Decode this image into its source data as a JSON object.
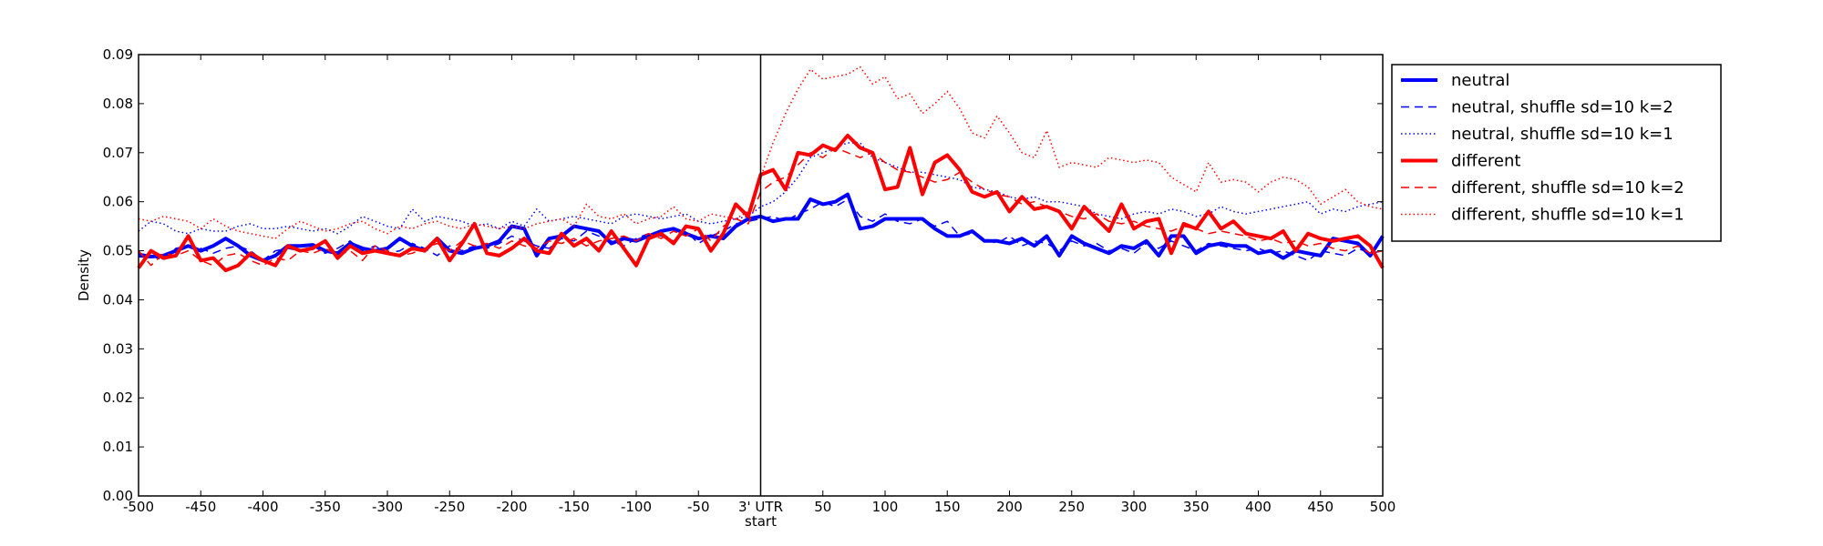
{
  "chart_data": {
    "type": "line",
    "ylabel": "Density",
    "xlim": [
      -500,
      500
    ],
    "ylim": [
      0,
      0.09
    ],
    "grid": false,
    "legend_position": "outside-right",
    "x_ticks": [
      {
        "value": -500,
        "label": "-500"
      },
      {
        "value": -450,
        "label": "-450"
      },
      {
        "value": -400,
        "label": "-400"
      },
      {
        "value": -350,
        "label": "-350"
      },
      {
        "value": -300,
        "label": "-300"
      },
      {
        "value": -250,
        "label": "-250"
      },
      {
        "value": -200,
        "label": "-200"
      },
      {
        "value": -150,
        "label": "-150"
      },
      {
        "value": -100,
        "label": "-100"
      },
      {
        "value": -50,
        "label": "-50"
      },
      {
        "value": 0,
        "label": "3' UTR\nstart"
      },
      {
        "value": 50,
        "label": "50"
      },
      {
        "value": 100,
        "label": "100"
      },
      {
        "value": 150,
        "label": "150"
      },
      {
        "value": 200,
        "label": "200"
      },
      {
        "value": 250,
        "label": "250"
      },
      {
        "value": 300,
        "label": "300"
      },
      {
        "value": 350,
        "label": "350"
      },
      {
        "value": 400,
        "label": "400"
      },
      {
        "value": 450,
        "label": "450"
      },
      {
        "value": 500,
        "label": "500"
      }
    ],
    "y_ticks": [
      {
        "value": 0,
        "label": "0.00"
      },
      {
        "value": 0.01,
        "label": "0.01"
      },
      {
        "value": 0.02,
        "label": "0.02"
      },
      {
        "value": 0.03,
        "label": "0.03"
      },
      {
        "value": 0.04,
        "label": "0.04"
      },
      {
        "value": 0.05,
        "label": "0.05"
      },
      {
        "value": 0.06,
        "label": "0.06"
      },
      {
        "value": 0.07,
        "label": "0.07"
      },
      {
        "value": 0.08,
        "label": "0.08"
      },
      {
        "value": 0.09,
        "label": "0.09"
      }
    ],
    "vertical_line_x": 0,
    "x": [
      -500,
      -490,
      -480,
      -470,
      -460,
      -450,
      -440,
      -430,
      -420,
      -410,
      -400,
      -390,
      -380,
      -370,
      -360,
      -350,
      -340,
      -330,
      -320,
      -310,
      -300,
      -290,
      -280,
      -270,
      -260,
      -250,
      -240,
      -230,
      -220,
      -210,
      -200,
      -190,
      -180,
      -170,
      -160,
      -150,
      -140,
      -130,
      -120,
      -110,
      -100,
      -90,
      -80,
      -70,
      -60,
      -50,
      -40,
      -30,
      -20,
      -10,
      0,
      10,
      20,
      30,
      40,
      50,
      60,
      70,
      80,
      90,
      100,
      110,
      120,
      130,
      140,
      150,
      160,
      170,
      180,
      190,
      200,
      210,
      220,
      230,
      240,
      250,
      260,
      270,
      280,
      290,
      300,
      310,
      320,
      330,
      340,
      350,
      360,
      370,
      380,
      390,
      400,
      410,
      420,
      430,
      440,
      450,
      460,
      470,
      480,
      490,
      500
    ],
    "series": [
      {
        "name": "neutral",
        "color": "#0000ff",
        "style": "solid",
        "width": 4,
        "values": [
          0.049,
          0.0488,
          0.049,
          0.05,
          0.051,
          0.05,
          0.051,
          0.0525,
          0.051,
          0.049,
          0.048,
          0.049,
          0.051,
          0.051,
          0.0512,
          0.05,
          0.0495,
          0.0515,
          0.0505,
          0.05,
          0.0505,
          0.0525,
          0.051,
          0.05,
          0.0525,
          0.05,
          0.0495,
          0.0505,
          0.051,
          0.052,
          0.055,
          0.0545,
          0.049,
          0.0525,
          0.053,
          0.055,
          0.0545,
          0.054,
          0.0515,
          0.0525,
          0.052,
          0.053,
          0.054,
          0.0545,
          0.0535,
          0.0525,
          0.053,
          0.0525,
          0.055,
          0.0565,
          0.057,
          0.056,
          0.0565,
          0.0565,
          0.0605,
          0.0595,
          0.06,
          0.0615,
          0.0545,
          0.055,
          0.0565,
          0.0565,
          0.0565,
          0.0565,
          0.0545,
          0.053,
          0.053,
          0.054,
          0.052,
          0.052,
          0.0515,
          0.0525,
          0.051,
          0.053,
          0.049,
          0.053,
          0.0515,
          0.0505,
          0.0495,
          0.051,
          0.0505,
          0.052,
          0.049,
          0.053,
          0.053,
          0.0495,
          0.051,
          0.0515,
          0.051,
          0.051,
          0.0495,
          0.05,
          0.0485,
          0.05,
          0.0495,
          0.049,
          0.0525,
          0.052,
          0.0515,
          0.049,
          0.053
        ]
      },
      {
        "name": "neutral, shuffle sd=10 k=2",
        "color": "#0000ff",
        "style": "dashed",
        "width": 1.5,
        "values": [
          0.0495,
          0.049,
          0.048,
          0.0505,
          0.051,
          0.0505,
          0.0495,
          0.0505,
          0.051,
          0.05,
          0.048,
          0.05,
          0.0505,
          0.05,
          0.051,
          0.0495,
          0.0505,
          0.052,
          0.05,
          0.051,
          0.0495,
          0.05,
          0.0515,
          0.0505,
          0.049,
          0.051,
          0.05,
          0.051,
          0.0505,
          0.0515,
          0.053,
          0.052,
          0.051,
          0.0505,
          0.0525,
          0.052,
          0.054,
          0.053,
          0.052,
          0.051,
          0.0525,
          0.0535,
          0.053,
          0.052,
          0.054,
          0.0515,
          0.053,
          0.054,
          0.0555,
          0.056,
          0.0565,
          0.057,
          0.056,
          0.0575,
          0.0585,
          0.06,
          0.059,
          0.0605,
          0.057,
          0.056,
          0.0575,
          0.056,
          0.0555,
          0.0565,
          0.055,
          0.056,
          0.053,
          0.0535,
          0.0525,
          0.0515,
          0.053,
          0.051,
          0.052,
          0.0515,
          0.05,
          0.052,
          0.051,
          0.0515,
          0.05,
          0.0505,
          0.0495,
          0.0515,
          0.0505,
          0.052,
          0.051,
          0.05,
          0.0515,
          0.051,
          0.0505,
          0.05,
          0.0505,
          0.0495,
          0.05,
          0.049,
          0.048,
          0.05,
          0.0495,
          0.049,
          0.0505,
          0.0495,
          0.05
        ]
      },
      {
        "name": "neutral, shuffle sd=10 k=1",
        "color": "#0000ff",
        "style": "dotted",
        "width": 1.5,
        "values": [
          0.054,
          0.056,
          0.0555,
          0.054,
          0.0535,
          0.0545,
          0.054,
          0.054,
          0.055,
          0.0555,
          0.0545,
          0.0545,
          0.055,
          0.0545,
          0.054,
          0.0545,
          0.0535,
          0.055,
          0.057,
          0.056,
          0.055,
          0.0545,
          0.0585,
          0.056,
          0.057,
          0.0565,
          0.056,
          0.055,
          0.0555,
          0.0545,
          0.056,
          0.055,
          0.0585,
          0.056,
          0.0565,
          0.057,
          0.0565,
          0.056,
          0.0555,
          0.057,
          0.0575,
          0.057,
          0.0565,
          0.057,
          0.0575,
          0.056,
          0.0555,
          0.056,
          0.0565,
          0.057,
          0.059,
          0.06,
          0.062,
          0.065,
          0.069,
          0.07,
          0.071,
          0.072,
          0.072,
          0.069,
          0.068,
          0.067,
          0.066,
          0.066,
          0.0655,
          0.065,
          0.0645,
          0.063,
          0.0625,
          0.062,
          0.061,
          0.0605,
          0.061,
          0.06,
          0.06,
          0.0595,
          0.059,
          0.0575,
          0.057,
          0.0565,
          0.0575,
          0.058,
          0.0575,
          0.0585,
          0.058,
          0.057,
          0.0575,
          0.059,
          0.058,
          0.0575,
          0.058,
          0.0585,
          0.059,
          0.0595,
          0.06,
          0.0575,
          0.0585,
          0.058,
          0.059,
          0.0595,
          0.06
        ]
      },
      {
        "name": "different",
        "color": "#ff0000",
        "style": "solid",
        "width": 4,
        "values": [
          0.0465,
          0.05,
          0.0485,
          0.049,
          0.053,
          0.048,
          0.0485,
          0.046,
          0.047,
          0.0495,
          0.048,
          0.047,
          0.051,
          0.05,
          0.0505,
          0.052,
          0.0485,
          0.051,
          0.0495,
          0.05,
          0.0495,
          0.049,
          0.0505,
          0.05,
          0.0525,
          0.048,
          0.0515,
          0.0555,
          0.0495,
          0.049,
          0.0505,
          0.0525,
          0.05,
          0.0495,
          0.0535,
          0.051,
          0.0525,
          0.05,
          0.054,
          0.0505,
          0.047,
          0.0525,
          0.0535,
          0.0515,
          0.055,
          0.0545,
          0.05,
          0.0535,
          0.0595,
          0.057,
          0.0655,
          0.0665,
          0.0625,
          0.07,
          0.0695,
          0.0715,
          0.0705,
          0.0735,
          0.071,
          0.07,
          0.0625,
          0.063,
          0.071,
          0.0615,
          0.068,
          0.0695,
          0.0665,
          0.062,
          0.061,
          0.062,
          0.058,
          0.061,
          0.0585,
          0.059,
          0.058,
          0.0545,
          0.059,
          0.0565,
          0.054,
          0.0595,
          0.0545,
          0.056,
          0.0565,
          0.0495,
          0.0555,
          0.0545,
          0.058,
          0.0545,
          0.056,
          0.0535,
          0.053,
          0.0525,
          0.054,
          0.05,
          0.0535,
          0.0525,
          0.052,
          0.0525,
          0.053,
          0.051,
          0.0465
        ]
      },
      {
        "name": "different, shuffle sd=10 k=2",
        "color": "#ff0000",
        "style": "dashed",
        "width": 1.5,
        "values": [
          0.05,
          0.047,
          0.0495,
          0.049,
          0.05,
          0.048,
          0.047,
          0.049,
          0.0495,
          0.048,
          0.047,
          0.0485,
          0.048,
          0.05,
          0.0495,
          0.0505,
          0.049,
          0.05,
          0.048,
          0.051,
          0.05,
          0.049,
          0.0495,
          0.0505,
          0.0515,
          0.05,
          0.052,
          0.051,
          0.0515,
          0.0505,
          0.052,
          0.051,
          0.0505,
          0.052,
          0.0515,
          0.0525,
          0.051,
          0.052,
          0.0525,
          0.053,
          0.052,
          0.0535,
          0.0525,
          0.054,
          0.053,
          0.0545,
          0.052,
          0.055,
          0.0565,
          0.0555,
          0.062,
          0.064,
          0.065,
          0.0675,
          0.07,
          0.069,
          0.071,
          0.07,
          0.069,
          0.07,
          0.068,
          0.0665,
          0.066,
          0.065,
          0.064,
          0.0645,
          0.066,
          0.064,
          0.0625,
          0.0615,
          0.061,
          0.0595,
          0.06,
          0.059,
          0.058,
          0.057,
          0.0565,
          0.0575,
          0.056,
          0.0555,
          0.056,
          0.055,
          0.0545,
          0.054,
          0.055,
          0.0545,
          0.0535,
          0.054,
          0.0535,
          0.053,
          0.052,
          0.0525,
          0.0515,
          0.052,
          0.051,
          0.0515,
          0.0505,
          0.05,
          0.051,
          0.0495,
          0.05
        ]
      },
      {
        "name": "different, shuffle sd=10 k=1",
        "color": "#ff0000",
        "style": "dotted",
        "width": 1.5,
        "values": [
          0.0565,
          0.056,
          0.057,
          0.0565,
          0.056,
          0.0545,
          0.0565,
          0.055,
          0.054,
          0.0535,
          0.053,
          0.0525,
          0.0545,
          0.056,
          0.055,
          0.054,
          0.0545,
          0.0555,
          0.056,
          0.0545,
          0.0535,
          0.055,
          0.0545,
          0.0555,
          0.056,
          0.055,
          0.0545,
          0.0555,
          0.055,
          0.0545,
          0.055,
          0.0545,
          0.0555,
          0.056,
          0.0565,
          0.055,
          0.0595,
          0.057,
          0.0565,
          0.0575,
          0.0555,
          0.0565,
          0.057,
          0.059,
          0.0565,
          0.056,
          0.0575,
          0.057,
          0.0565,
          0.058,
          0.065,
          0.072,
          0.078,
          0.083,
          0.087,
          0.085,
          0.0855,
          0.086,
          0.0875,
          0.084,
          0.0855,
          0.081,
          0.082,
          0.078,
          0.08,
          0.0825,
          0.079,
          0.074,
          0.073,
          0.0775,
          0.074,
          0.07,
          0.069,
          0.0745,
          0.067,
          0.068,
          0.0675,
          0.067,
          0.069,
          0.0685,
          0.068,
          0.0685,
          0.068,
          0.065,
          0.0635,
          0.062,
          0.068,
          0.064,
          0.0645,
          0.064,
          0.062,
          0.064,
          0.065,
          0.0645,
          0.063,
          0.0595,
          0.061,
          0.0625,
          0.06,
          0.059,
          0.0585
        ]
      }
    ]
  }
}
